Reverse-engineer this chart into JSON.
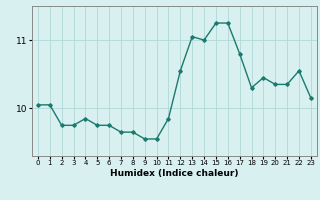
{
  "x": [
    0,
    1,
    2,
    3,
    4,
    5,
    6,
    7,
    8,
    9,
    10,
    11,
    12,
    13,
    14,
    15,
    16,
    17,
    18,
    19,
    20,
    21,
    22,
    23
  ],
  "y": [
    10.05,
    10.05,
    9.75,
    9.75,
    9.85,
    9.75,
    9.75,
    9.65,
    9.65,
    9.55,
    9.55,
    9.85,
    10.55,
    11.05,
    11.0,
    11.25,
    11.25,
    10.8,
    10.3,
    10.45,
    10.35,
    10.35,
    10.55,
    10.15
  ],
  "line_color": "#1a7a6e",
  "marker": "D",
  "marker_size": 1.8,
  "bg_color": "#d8f0f0",
  "grid_color": "#b0d8d8",
  "xlabel": "Humidex (Indice chaleur)",
  "ylim": [
    9.3,
    11.5
  ],
  "xlim": [
    -0.5,
    23.5
  ],
  "yticks": [
    10,
    11
  ],
  "xticks": [
    0,
    1,
    2,
    3,
    4,
    5,
    6,
    7,
    8,
    9,
    10,
    11,
    12,
    13,
    14,
    15,
    16,
    17,
    18,
    19,
    20,
    21,
    22,
    23
  ],
  "xlabel_fontsize": 6.5,
  "xtick_fontsize": 5.0,
  "ytick_fontsize": 6.5,
  "spine_color": "#888888",
  "linewidth": 1.0
}
